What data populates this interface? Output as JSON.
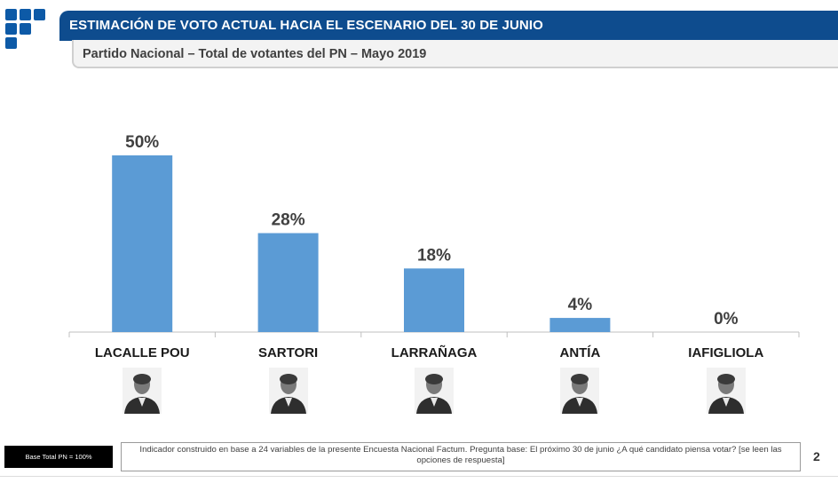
{
  "header": {
    "title": "ESTIMACIÓN DE VOTO ACTUAL HACIA EL ESCENARIO DEL 30 DE JUNIO",
    "subtitle": "Partido Nacional – Total de votantes del PN – Mayo 2019"
  },
  "chart_data": {
    "type": "bar",
    "categories": [
      "LACALLE POU",
      "SARTORI",
      "LARRAÑAGA",
      "ANTÍA",
      "IAFIGLIOLA"
    ],
    "values": [
      50,
      28,
      18,
      4,
      0
    ],
    "value_labels": [
      "50%",
      "28%",
      "18%",
      "4%",
      "0%"
    ],
    "ylim": [
      0,
      50
    ],
    "grid": false,
    "bar_color": "#5b9bd5"
  },
  "footer": {
    "base": "Base Total PN = 100%",
    "note": "Indicador construido en base a 24 variables de la presente Encuesta Nacional Factum. Pregunta base: El próximo 30 de junio ¿A qué candidato piensa votar? [se leen las opciones de respuesta]",
    "page": "2"
  },
  "colors": {
    "title_bar": "#0e4c8e",
    "logo": "#0d5aa7",
    "bar": "#5b9bd5"
  }
}
